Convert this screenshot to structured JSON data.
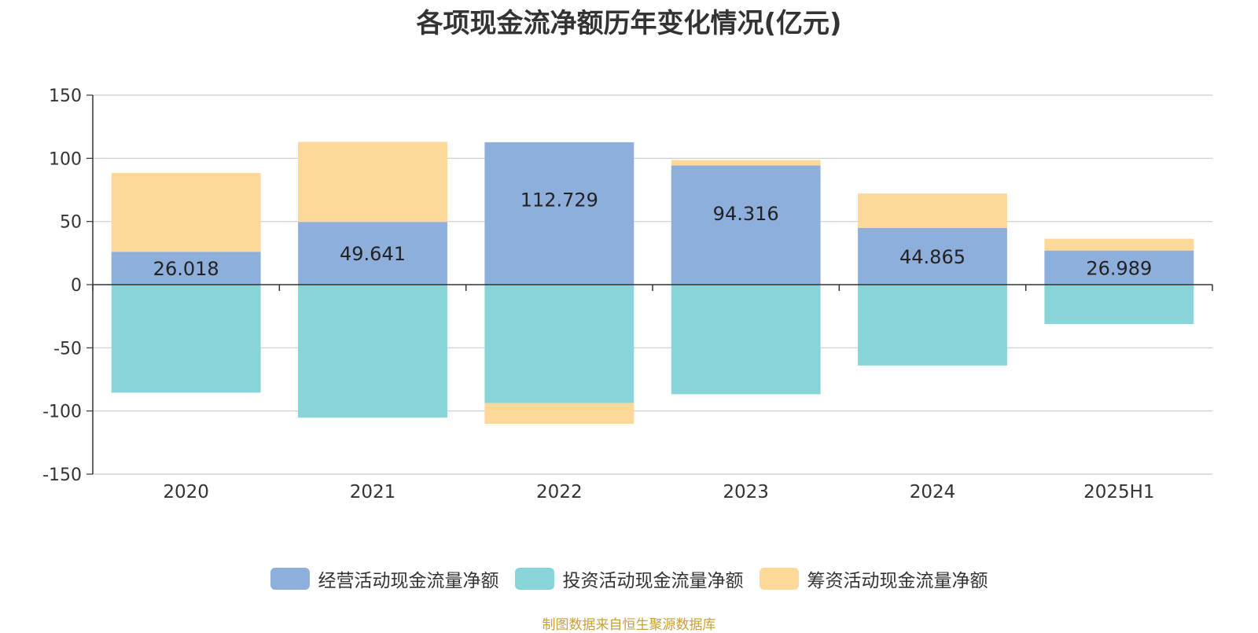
{
  "chart_data": {
    "type": "bar",
    "stacked": true,
    "title": "各项现金流净额历年变化情况(亿元)",
    "categories": [
      "2020",
      "2021",
      "2022",
      "2023",
      "2024",
      "2025H1"
    ],
    "series": [
      {
        "name": "经营活动现金流量净额",
        "color": "#8eaedb",
        "values": [
          26.018,
          49.641,
          112.729,
          94.316,
          44.865,
          26.989
        ]
      },
      {
        "name": "投资活动现金流量净额",
        "color": "#87d5d8",
        "values": [
          -85.5,
          -105.2,
          -93.8,
          -86.7,
          -64.0,
          -31.2
        ]
      },
      {
        "name": "筹资活动现金流量净额",
        "color": "#fed899",
        "values": [
          62.4,
          63.4,
          -16.4,
          4.4,
          27.3,
          9.4
        ]
      }
    ],
    "data_labels_series": "经营活动现金流量净额",
    "data_labels": [
      "26.018",
      "49.641",
      "112.729",
      "94.316",
      "44.865",
      "26.989"
    ],
    "yticks": [
      "150",
      "100",
      "50",
      "0",
      "-50",
      "-100",
      "-150"
    ],
    "ylim": [
      -150,
      150
    ],
    "xlabel": "",
    "ylabel": "",
    "grid": true,
    "legend_position": "bottom"
  },
  "source": "制图数据来自恒生聚源数据库"
}
